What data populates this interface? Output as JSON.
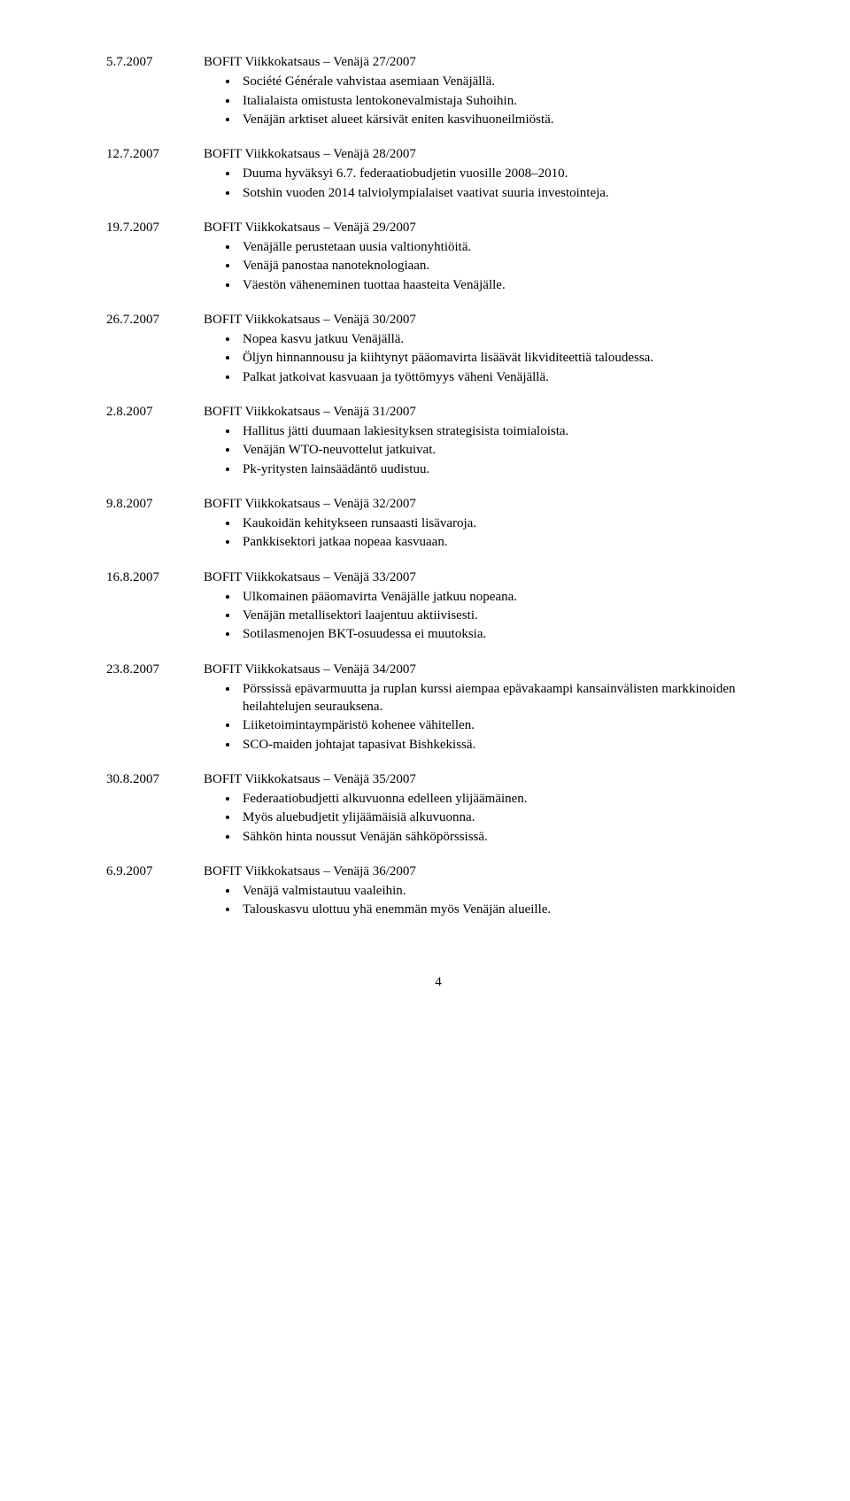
{
  "entries": [
    {
      "date": "5.7.2007",
      "title": "BOFIT Viikkokatsaus – Venäjä  27/2007",
      "bullets": [
        "Société Générale vahvistaa asemiaan Venäjällä.",
        "Italialaista omistusta lentokonevalmistaja Suhoihin.",
        "Venäjän arktiset alueet kärsivät eniten kasvihuoneilmiöstä."
      ]
    },
    {
      "date": "12.7.2007",
      "title": "BOFIT Viikkokatsaus – Venäjä  28/2007",
      "bullets": [
        "Duuma hyväksyi 6.7. federaatiobudjetin vuosille 2008–2010.",
        "Sotshin vuoden 2014 talviolympialaiset vaativat suuria investointeja."
      ]
    },
    {
      "date": "19.7.2007",
      "title": "BOFIT Viikkokatsaus – Venäjä  29/2007",
      "bullets": [
        "Venäjälle perustetaan uusia valtionyhtiöitä.",
        "Venäjä panostaa nanoteknologiaan.",
        "Väestön väheneminen tuottaa haasteita Venäjälle."
      ]
    },
    {
      "date": "26.7.2007",
      "title": "BOFIT Viikkokatsaus – Venäjä  30/2007",
      "bullets": [
        "Nopea kasvu jatkuu Venäjällä.",
        "Öljyn hinnannousu ja kiihtynyt pääomavirta lisäävät likviditeettiä taloudessa.",
        "Palkat jatkoivat kasvuaan ja työttömyys väheni Venäjällä."
      ]
    },
    {
      "date": "2.8.2007",
      "title": "BOFIT Viikkokatsaus – Venäjä  31/2007",
      "bullets": [
        "Hallitus jätti duumaan lakiesityksen strategisista toimialoista.",
        "Venäjän WTO-neuvottelut jatkuivat.",
        "Pk-yritysten lainsäädäntö uudistuu."
      ]
    },
    {
      "date": "9.8.2007",
      "title": "BOFIT Viikkokatsaus – Venäjä  32/2007",
      "bullets": [
        "Kaukoidän kehitykseen runsaasti lisävaroja.",
        "Pankkisektori jatkaa nopeaa kasvuaan."
      ]
    },
    {
      "date": "16.8.2007",
      "title": "BOFIT Viikkokatsaus – Venäjä  33/2007",
      "bullets": [
        "Ulkomainen pääomavirta Venäjälle jatkuu nopeana.",
        "Venäjän metallisektori laajentuu aktiivisesti.",
        "Sotilasmenojen BKT-osuudessa ei muutoksia."
      ]
    },
    {
      "date": "23.8.2007",
      "title": "BOFIT Viikkokatsaus – Venäjä  34/2007",
      "bullets": [
        "Pörssissä epävarmuutta ja ruplan kurssi aiempaa epävakaampi kansainvälisten markkinoiden heilahtelujen seurauksena.",
        "Liiketoimintaympäristö kohenee vähitellen.",
        "SCO-maiden johtajat tapasivat Bishkekissä."
      ]
    },
    {
      "date": "30.8.2007",
      "title": "BOFIT Viikkokatsaus – Venäjä  35/2007",
      "bullets": [
        "Federaatiobudjetti alkuvuonna edelleen ylijäämäinen.",
        "Myös aluebudjetit ylijäämäisiä alkuvuonna.",
        "Sähkön hinta noussut Venäjän sähköpörssissä."
      ]
    },
    {
      "date": "6.9.2007",
      "title": "BOFIT Viikkokatsaus – Venäjä  36/2007",
      "bullets": [
        "Venäjä valmistautuu vaaleihin.",
        "Talouskasvu ulottuu yhä enemmän myös Venäjän alueille."
      ]
    }
  ],
  "pageNumber": "4"
}
